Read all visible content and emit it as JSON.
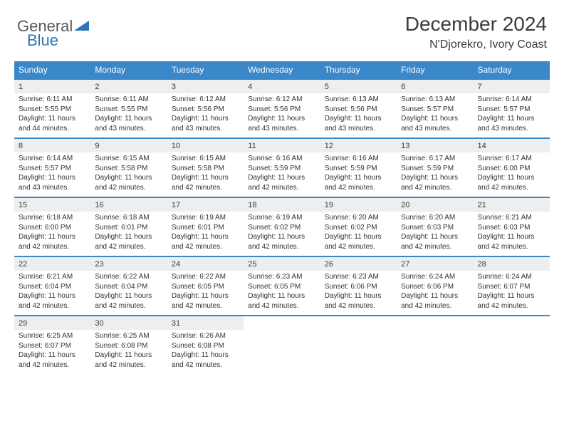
{
  "logo": {
    "textGeneral": "General",
    "textBlue": "Blue"
  },
  "title": "December 2024",
  "location": "N'Djorekro, Ivory Coast",
  "colors": {
    "headerBar": "#3a87c9",
    "dayNumBar": "#eceeef",
    "weekTopBorder": "#3a87c9",
    "logoBlue": "#2e75b6",
    "logoGray": "#595959"
  },
  "fonts": {
    "monthTitleSize": 28,
    "locationSize": 16,
    "dowSize": 12,
    "dayNumSize": 11,
    "bodySize": 10
  },
  "dow": [
    "Sunday",
    "Monday",
    "Tuesday",
    "Wednesday",
    "Thursday",
    "Friday",
    "Saturday"
  ],
  "days": [
    {
      "n": "1",
      "sr": "6:11 AM",
      "ss": "5:55 PM",
      "dl": "11 hours and 44 minutes."
    },
    {
      "n": "2",
      "sr": "6:11 AM",
      "ss": "5:55 PM",
      "dl": "11 hours and 43 minutes."
    },
    {
      "n": "3",
      "sr": "6:12 AM",
      "ss": "5:56 PM",
      "dl": "11 hours and 43 minutes."
    },
    {
      "n": "4",
      "sr": "6:12 AM",
      "ss": "5:56 PM",
      "dl": "11 hours and 43 minutes."
    },
    {
      "n": "5",
      "sr": "6:13 AM",
      "ss": "5:56 PM",
      "dl": "11 hours and 43 minutes."
    },
    {
      "n": "6",
      "sr": "6:13 AM",
      "ss": "5:57 PM",
      "dl": "11 hours and 43 minutes."
    },
    {
      "n": "7",
      "sr": "6:14 AM",
      "ss": "5:57 PM",
      "dl": "11 hours and 43 minutes."
    },
    {
      "n": "8",
      "sr": "6:14 AM",
      "ss": "5:57 PM",
      "dl": "11 hours and 43 minutes."
    },
    {
      "n": "9",
      "sr": "6:15 AM",
      "ss": "5:58 PM",
      "dl": "11 hours and 42 minutes."
    },
    {
      "n": "10",
      "sr": "6:15 AM",
      "ss": "5:58 PM",
      "dl": "11 hours and 42 minutes."
    },
    {
      "n": "11",
      "sr": "6:16 AM",
      "ss": "5:59 PM",
      "dl": "11 hours and 42 minutes."
    },
    {
      "n": "12",
      "sr": "6:16 AM",
      "ss": "5:59 PM",
      "dl": "11 hours and 42 minutes."
    },
    {
      "n": "13",
      "sr": "6:17 AM",
      "ss": "5:59 PM",
      "dl": "11 hours and 42 minutes."
    },
    {
      "n": "14",
      "sr": "6:17 AM",
      "ss": "6:00 PM",
      "dl": "11 hours and 42 minutes."
    },
    {
      "n": "15",
      "sr": "6:18 AM",
      "ss": "6:00 PM",
      "dl": "11 hours and 42 minutes."
    },
    {
      "n": "16",
      "sr": "6:18 AM",
      "ss": "6:01 PM",
      "dl": "11 hours and 42 minutes."
    },
    {
      "n": "17",
      "sr": "6:19 AM",
      "ss": "6:01 PM",
      "dl": "11 hours and 42 minutes."
    },
    {
      "n": "18",
      "sr": "6:19 AM",
      "ss": "6:02 PM",
      "dl": "11 hours and 42 minutes."
    },
    {
      "n": "19",
      "sr": "6:20 AM",
      "ss": "6:02 PM",
      "dl": "11 hours and 42 minutes."
    },
    {
      "n": "20",
      "sr": "6:20 AM",
      "ss": "6:03 PM",
      "dl": "11 hours and 42 minutes."
    },
    {
      "n": "21",
      "sr": "6:21 AM",
      "ss": "6:03 PM",
      "dl": "11 hours and 42 minutes."
    },
    {
      "n": "22",
      "sr": "6:21 AM",
      "ss": "6:04 PM",
      "dl": "11 hours and 42 minutes."
    },
    {
      "n": "23",
      "sr": "6:22 AM",
      "ss": "6:04 PM",
      "dl": "11 hours and 42 minutes."
    },
    {
      "n": "24",
      "sr": "6:22 AM",
      "ss": "6:05 PM",
      "dl": "11 hours and 42 minutes."
    },
    {
      "n": "25",
      "sr": "6:23 AM",
      "ss": "6:05 PM",
      "dl": "11 hours and 42 minutes."
    },
    {
      "n": "26",
      "sr": "6:23 AM",
      "ss": "6:06 PM",
      "dl": "11 hours and 42 minutes."
    },
    {
      "n": "27",
      "sr": "6:24 AM",
      "ss": "6:06 PM",
      "dl": "11 hours and 42 minutes."
    },
    {
      "n": "28",
      "sr": "6:24 AM",
      "ss": "6:07 PM",
      "dl": "11 hours and 42 minutes."
    },
    {
      "n": "29",
      "sr": "6:25 AM",
      "ss": "6:07 PM",
      "dl": "11 hours and 42 minutes."
    },
    {
      "n": "30",
      "sr": "6:25 AM",
      "ss": "6:08 PM",
      "dl": "11 hours and 42 minutes."
    },
    {
      "n": "31",
      "sr": "6:26 AM",
      "ss": "6:08 PM",
      "dl": "11 hours and 42 minutes."
    }
  ],
  "labels": {
    "sunrisePrefix": "Sunrise: ",
    "sunsetPrefix": "Sunset: ",
    "daylightPrefix": "Daylight: "
  },
  "firstDayColumn": 0,
  "trailingBlanks": 4
}
